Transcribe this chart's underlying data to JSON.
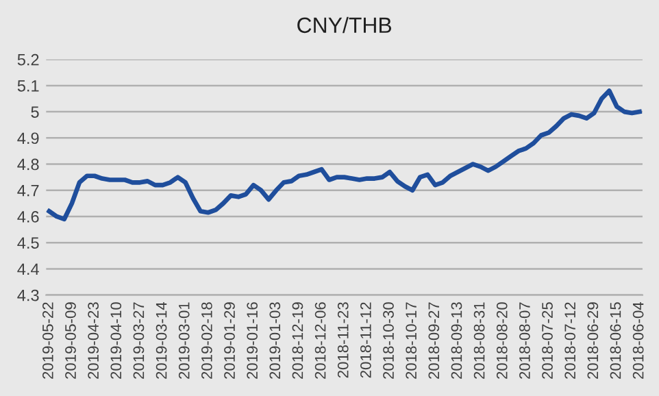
{
  "chart_data": {
    "type": "line",
    "title": "CNY/THB",
    "categories": [
      "2019-05-22",
      null,
      null,
      "2019-05-09",
      null,
      null,
      "2019-04-23",
      null,
      null,
      "2019-04-10",
      null,
      null,
      "2019-03-27",
      null,
      null,
      "2019-03-14",
      null,
      null,
      "2019-03-01",
      null,
      null,
      "2019-02-18",
      null,
      null,
      "2019-01-29",
      null,
      null,
      "2019-01-16",
      null,
      null,
      "2019-01-03",
      null,
      null,
      "2018-12-19",
      null,
      null,
      "2018-12-06",
      null,
      null,
      "2018-11-23",
      null,
      null,
      "2018-11-12",
      null,
      null,
      "2018-10-30",
      null,
      null,
      "2018-10-17",
      null,
      null,
      "2018-09-27",
      null,
      null,
      "2018-09-13",
      null,
      null,
      "2018-08-31",
      null,
      null,
      "2018-08-20",
      null,
      null,
      "2018-08-07",
      null,
      null,
      "2018-07-25",
      null,
      null,
      "2018-07-12",
      null,
      null,
      "2018-06-29",
      null,
      null,
      "2018-06-15",
      null,
      null,
      "2018-06-04"
    ],
    "series": [
      {
        "color": "#1f4e9c",
        "values": [
          4.62,
          4.6,
          4.59,
          4.65,
          4.73,
          4.755,
          4.755,
          4.745,
          4.74,
          4.74,
          4.74,
          4.73,
          4.73,
          4.735,
          4.72,
          4.72,
          4.73,
          4.75,
          4.73,
          4.67,
          4.62,
          4.615,
          4.625,
          4.65,
          4.68,
          4.675,
          4.685,
          4.72,
          4.7,
          4.665,
          4.7,
          4.73,
          4.735,
          4.755,
          4.76,
          4.77,
          4.78,
          4.74,
          4.75,
          4.75,
          4.745,
          4.74,
          4.745,
          4.745,
          4.75,
          4.77,
          4.735,
          4.715,
          4.7,
          4.75,
          4.76,
          4.72,
          4.73,
          4.755,
          4.77,
          4.785,
          4.8,
          4.79,
          4.775,
          4.79,
          4.81,
          4.83,
          4.85,
          4.86,
          4.88,
          4.91,
          4.92,
          4.945,
          4.975,
          4.99,
          4.985,
          4.975,
          4.995,
          5.05,
          5.08,
          5.02,
          5.0,
          4.995,
          5.0
        ]
      }
    ],
    "ylim": [
      4.3,
      5.2
    ],
    "yticks": [
      4.3,
      4.4,
      4.5,
      4.6,
      4.7,
      4.8,
      4.9,
      5,
      5.1,
      5.2
    ],
    "grid": "y",
    "marker": "none",
    "line_style": "solid",
    "legend": false
  }
}
